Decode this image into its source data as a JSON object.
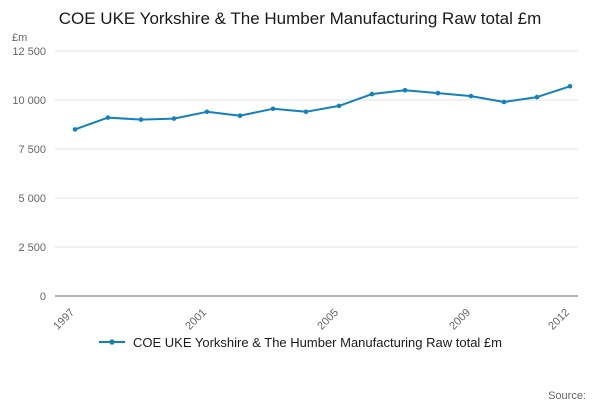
{
  "page": {
    "source_label": "Source:"
  },
  "chart_data": {
    "type": "line",
    "title": "COE UKE Yorkshire & The Humber Manufacturing Raw total £m",
    "ylabel": "£m",
    "x": [
      1997,
      1998,
      1999,
      2000,
      2001,
      2002,
      2003,
      2004,
      2005,
      2006,
      2007,
      2008,
      2009,
      2010,
      2011,
      2012
    ],
    "values": [
      8500,
      9100,
      9000,
      9050,
      9400,
      9200,
      9550,
      9400,
      9700,
      10300,
      10500,
      10350,
      10200,
      9900,
      10150,
      10700
    ],
    "ylim": [
      0,
      12500
    ],
    "yticks": [
      0,
      2500,
      5000,
      7500,
      10000,
      12500
    ],
    "ytick_labels": [
      "0",
      "2 500",
      "5 000",
      "7 500",
      "10 000",
      "12 500"
    ],
    "xticks": [
      1997,
      2001,
      2005,
      2009,
      2012
    ],
    "grid": true,
    "legend_position": "bottom",
    "legend_label": "COE UKE Yorkshire & The Humber Manufacturing Raw total £m",
    "line_color": "#1380be",
    "grid_color": "#e3e3e3",
    "axis_color": "#666666",
    "tick_label_color": "#666666"
  }
}
